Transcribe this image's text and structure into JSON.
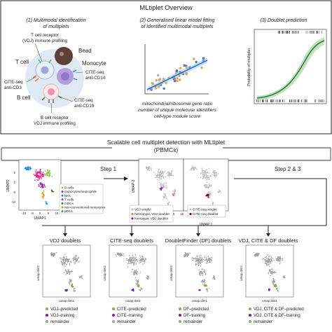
{
  "overview": {
    "title": "MLtiplet Overview",
    "panel1": {
      "title_line1": "(1) Multimodal identification",
      "title_line2": "of multiplets"
    },
    "panel2": {
      "title_line1": "(2) Generalised linear model fitting",
      "title_line2": "of identified multimodal multiplets"
    },
    "panel3": {
      "title": "(3) Doublet prediction"
    }
  },
  "cells": {
    "tcr_line1": "T cell receptor",
    "tcr_line2": "(VDJ) immune profiling",
    "bead": "Bead",
    "t_cell": "T cell",
    "monocyte": "Monocyte",
    "cite_cd14_line1": "CITE-seq",
    "cite_cd14_line2": "anti-CD14",
    "cite_cd3_line1": "CITE-seq",
    "cite_cd3_line2": "anti-CD3",
    "b_cell": "B cell",
    "cite_cd19_line1": "CITE-seq",
    "cite_cd19_line2": "anti-CD19",
    "bcr_line1": "B cell receptor",
    "bcr_line2": "VDJ immune profiling"
  },
  "glm": {
    "caption_line1": "mitochondrial/ribosomal gene ratio",
    "caption_line2": "number of unique molecular identifiers",
    "caption_line3": "cell-type module score"
  },
  "prediction": {
    "ylabel": "Probability of multiplet"
  },
  "scalable": {
    "title_line1": "Scalable cell multiplet detection with MLtiplet",
    "title_line2": "(PBMCs)"
  },
  "umap_main": {
    "ylabel": "UMAP2",
    "xlabel": "UMAP1",
    "xticks": [
      "-10",
      "-5",
      "0",
      "5",
      "10"
    ],
    "yticks": [
      "5",
      "0",
      "-5",
      "-10"
    ],
    "legend": [
      {
        "label": "B cells",
        "color": "#8bc34a"
      },
      {
        "label": "monocytes/neutrophils",
        "color": "#9c27b0"
      },
      {
        "label": "NKs",
        "color": "#1e88e5"
      },
      {
        "label": "T cells",
        "color": "#e91e8c"
      },
      {
        "label": "mDCs",
        "color": "#2e7d32"
      },
      {
        "label": "non-conventional monocytes",
        "color": "#d4a017"
      },
      {
        "label": "pDCs",
        "color": "#00acc1"
      }
    ]
  },
  "step1": "Step 1",
  "step23": "Step 2 & 3",
  "umap_step1": {
    "ylabel": "UMAP 2",
    "xlabel": "UMAP 1",
    "xticks": [
      "-10",
      "-5",
      "0",
      "5",
      "10"
    ],
    "legend_vdj": [
      {
        "label": "VDJ singlet",
        "color": "#bdbdbd"
      },
      {
        "label": "heterotypic VDJ doublet",
        "color": "#e57373"
      },
      {
        "label": "homotypic VDJ doublet",
        "color": "#7b1fa2"
      }
    ],
    "legend_cite": [
      {
        "label": "CITE-seq singlet",
        "color": "#bdbdbd"
      },
      {
        "label": "CITE-seq doublet",
        "color": "#8b0000"
      }
    ]
  },
  "bottom": {
    "axis_x": "umap dim1",
    "axis_y": "umap dim2",
    "panels": [
      {
        "title": "VDJ doublets",
        "legend": [
          {
            "label": "VDJ–predicted",
            "color": "#7cb342"
          },
          {
            "label": "VDJ–training",
            "color": "#7b1fa2"
          },
          {
            "label": "remainder",
            "color": "#9e9e9e"
          }
        ]
      },
      {
        "title": "CITE-seq doublets",
        "legend": [
          {
            "label": "CITE–predicted",
            "color": "#7cb342"
          },
          {
            "label": "CITE–training",
            "color": "#7b1fa2"
          },
          {
            "label": "remainder",
            "color": "#9e9e9e"
          }
        ]
      },
      {
        "title": "DoubletFinder (DF) doublets",
        "legend": [
          {
            "label": "DF–predicted",
            "color": "#7cb342"
          },
          {
            "label": "DF–training",
            "color": "#7b1fa2"
          },
          {
            "label": "remainder",
            "color": "#9e9e9e"
          }
        ]
      },
      {
        "title": "VDJ, CITE & DF doublets",
        "legend": [
          {
            "label": "VDJ, CITE & DF–predicted",
            "color": "#7cb342"
          },
          {
            "label": "VDJ, CITE & DF–training",
            "color": "#7b1fa2"
          },
          {
            "label": "remainder",
            "color": "#9e9e9e"
          }
        ]
      }
    ]
  }
}
